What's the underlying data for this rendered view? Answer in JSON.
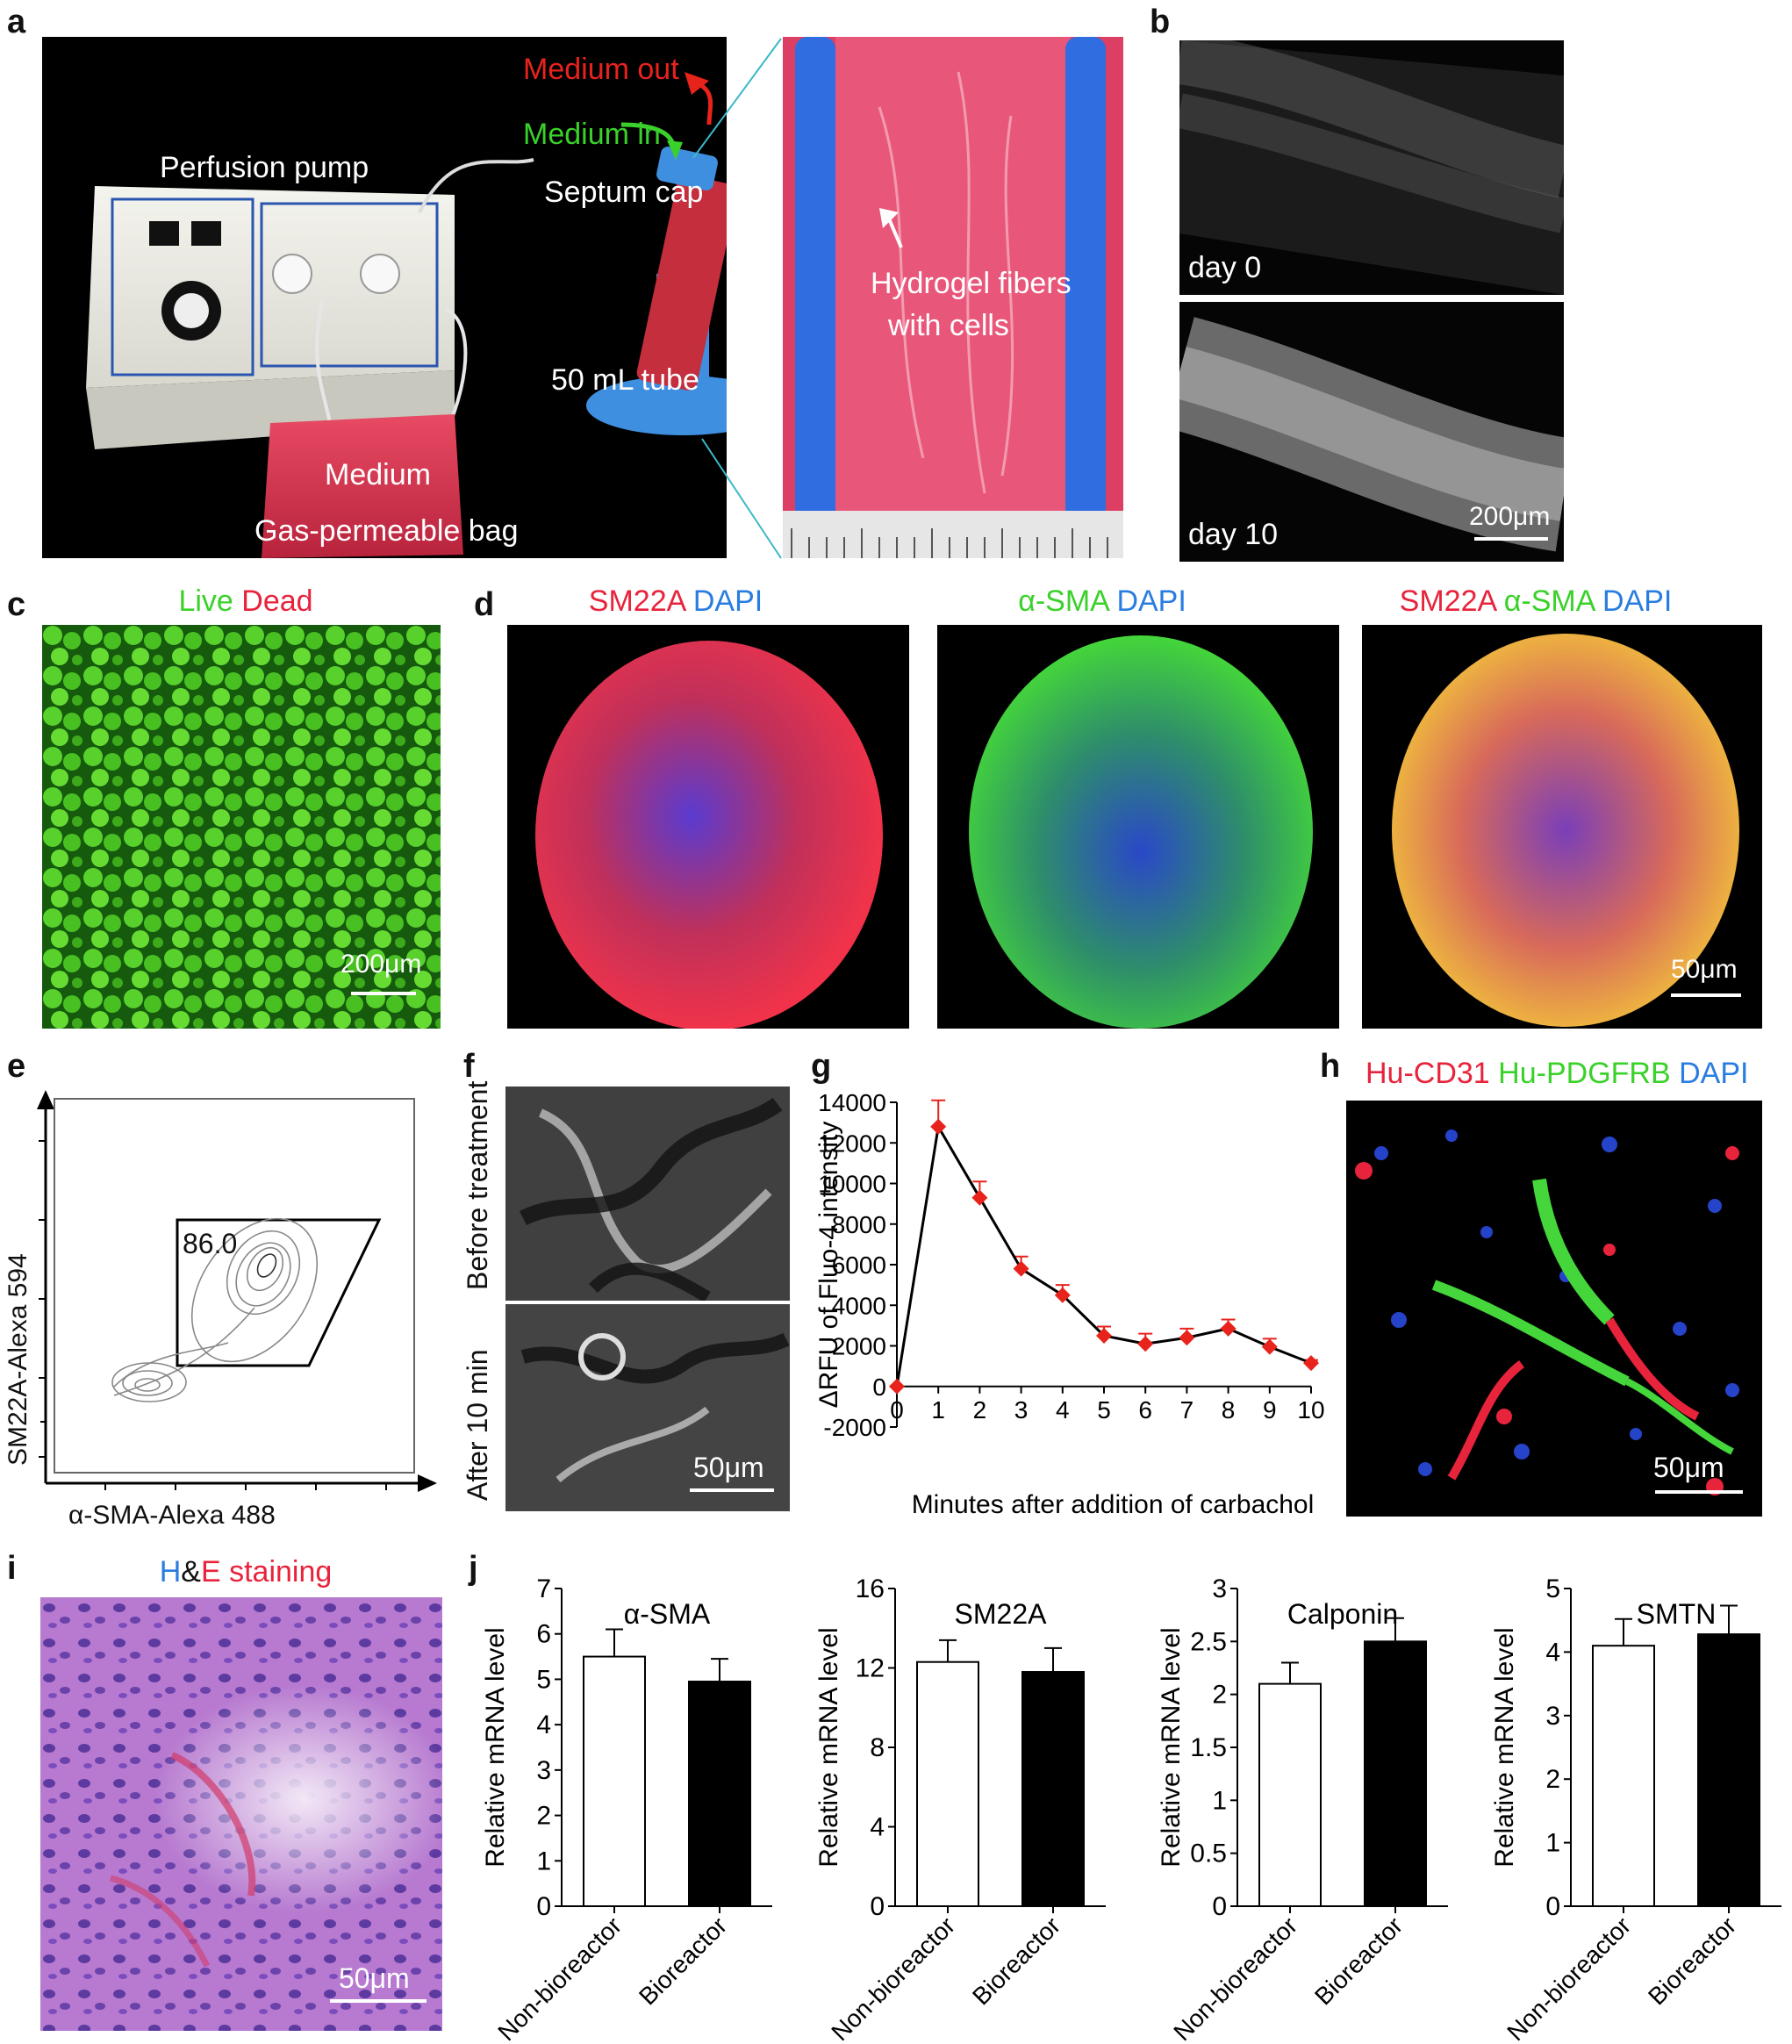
{
  "panels": {
    "a": {
      "label": "a",
      "annotations": {
        "medium_out": "Medium out",
        "medium_in": "Medium in",
        "septum_cap": "Septum cap",
        "perfusion_pump": "Perfusion pump",
        "fifty_ml_tube": "50 mL tube",
        "medium": "Medium",
        "gas_bag": "Gas-permeable bag",
        "hydrogel_line1": "Hydrogel fibers",
        "hydrogel_line2": "with cells"
      },
      "colors": {
        "medium_out": "#e8231c",
        "medium_in": "#3ad12a"
      }
    },
    "b": {
      "label": "b",
      "day0": "day 0",
      "day10": "day 10",
      "scalebar": "200μm"
    },
    "c": {
      "label": "c",
      "title_live": "Live",
      "title_dead": "Dead",
      "scalebar": "200μm"
    },
    "d": {
      "label": "d",
      "titles": [
        {
          "parts": [
            "SM22A",
            "DAPI"
          ]
        },
        {
          "parts": [
            "α-SMA",
            "DAPI"
          ]
        },
        {
          "parts": [
            "SM22A",
            "α-SMA",
            "DAPI"
          ]
        }
      ],
      "scalebar": "50μm"
    },
    "e": {
      "label": "e",
      "ylabel": "SM22A-Alexa 594",
      "xlabel": "α-SMA-Alexa 488",
      "gate_value": "86.0"
    },
    "f": {
      "label": "f",
      "top": "Before treatment",
      "bottom": "After 10 min",
      "scalebar": "50μm"
    },
    "g": {
      "label": "g"
    },
    "h": {
      "label": "h",
      "title_parts": [
        "Hu-CD31",
        "Hu-PDGFRB",
        "DAPI"
      ],
      "scalebar": "50μm"
    },
    "i": {
      "label": "i",
      "title_parts": [
        "H",
        "&",
        "E",
        " staining"
      ],
      "scalebar": "50μm"
    },
    "j": {
      "label": "j"
    }
  },
  "chart_data": [
    {
      "id": "g",
      "type": "line",
      "xlabel": "Minutes after addition of carbachol",
      "ylabel": "ΔRFU of Fluo-4 intensity",
      "x": [
        0,
        1,
        2,
        3,
        4,
        5,
        6,
        7,
        8,
        9,
        10
      ],
      "y": [
        0,
        12800,
        9300,
        5800,
        4500,
        2500,
        2100,
        2400,
        2850,
        1950,
        1150
      ],
      "err": [
        0,
        1300,
        800,
        600,
        500,
        450,
        500,
        450,
        450,
        400,
        150
      ],
      "xlim": [
        0,
        10
      ],
      "ylim": [
        -2000,
        14000
      ],
      "yticks": [
        -2000,
        0,
        2000,
        4000,
        6000,
        8000,
        10000,
        12000,
        14000
      ],
      "xticks": [
        0,
        1,
        2,
        3,
        4,
        5,
        6,
        7,
        8,
        9,
        10
      ],
      "marker_color": "#e8231c"
    },
    {
      "id": "j1",
      "type": "bar",
      "title": "α-SMA",
      "ylabel": "Relative mRNA level",
      "categories": [
        "Non-bioreactor",
        "Bioreactor"
      ],
      "values": [
        5.5,
        4.95
      ],
      "err": [
        0.6,
        0.5
      ],
      "ylim": [
        0,
        7
      ],
      "yticks": [
        0,
        1,
        2,
        3,
        4,
        5,
        6,
        7
      ]
    },
    {
      "id": "j2",
      "type": "bar",
      "title": "SM22A",
      "ylabel": "Relative mRNA level",
      "categories": [
        "Non-bioreactor",
        "Bioreactor"
      ],
      "values": [
        12.3,
        11.8
      ],
      "err": [
        1.1,
        1.2
      ],
      "ylim": [
        0,
        16
      ],
      "yticks": [
        0,
        4,
        8,
        12,
        16
      ]
    },
    {
      "id": "j3",
      "type": "bar",
      "title": "Calponin",
      "ylabel": "Relative mRNA level",
      "categories": [
        "Non-bioreactor",
        "Bioreactor"
      ],
      "values": [
        2.1,
        2.5
      ],
      "err": [
        0.2,
        0.22
      ],
      "ylim": [
        0,
        3
      ],
      "yticks": [
        0,
        0.5,
        1,
        1.5,
        2,
        2.5,
        3
      ]
    },
    {
      "id": "j4",
      "type": "bar",
      "title": "SMTN",
      "ylabel": "Relative mRNA level",
      "categories": [
        "Non-bioreactor",
        "Bioreactor"
      ],
      "values": [
        4.1,
        4.28
      ],
      "err": [
        0.42,
        0.45
      ],
      "ylim": [
        0,
        5
      ],
      "yticks": [
        0,
        1,
        2,
        3,
        4,
        5
      ]
    }
  ]
}
